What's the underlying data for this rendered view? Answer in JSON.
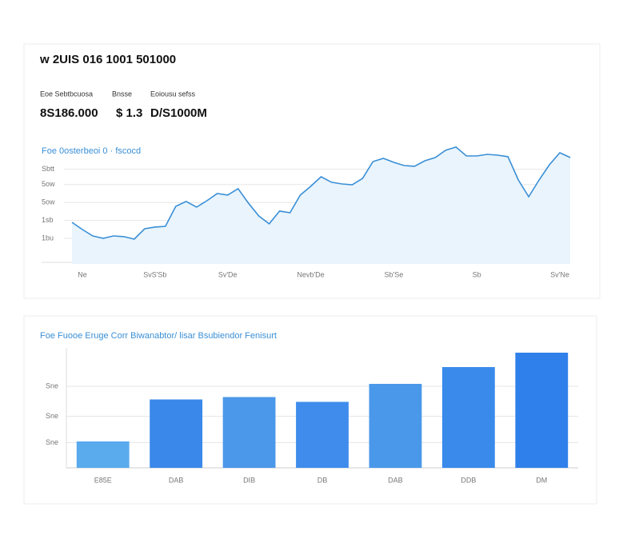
{
  "header": {
    "title": "w 2UIS 016 1001 501000",
    "stats": [
      {
        "label": "Eoe Sebtbcuosa",
        "value": "8S186.000"
      },
      {
        "label": "Bnsse",
        "value": "$ 1.3"
      },
      {
        "label": "Eoiousu sefss",
        "value": "D/S1000M"
      }
    ]
  },
  "chart_data": [
    {
      "type": "line",
      "title": "Foe 0osterbeoi 0 · fscocd",
      "color": "#3a8fd6",
      "area_color": "#e9f4fc",
      "grid": true,
      "values": [
        32.5,
        26.9,
        21.9,
        20,
        21.9,
        21.3,
        19.4,
        27.5,
        28.8,
        29.4,
        45,
        48.8,
        44.4,
        49.4,
        55,
        53.8,
        58.8,
        47.5,
        37.5,
        31.3,
        41.3,
        40,
        53.8,
        60.6,
        68.1,
        63.8,
        62.5,
        61.9,
        66.9,
        80,
        82.5,
        79.4,
        76.9,
        76.3,
        80.6,
        83.1,
        88.8,
        91.3,
        84.4,
        84.4,
        85.6,
        85,
        83.8,
        65.6,
        52.5,
        65.6,
        77.5,
        86.9,
        83.1
      ],
      "ylim": [
        0,
        100
      ],
      "yticks": [
        {
          "value": 20,
          "label": "1bu"
        },
        {
          "value": 34,
          "label": "1sb"
        },
        {
          "value": 48,
          "label": "5ow"
        },
        {
          "value": 62,
          "label": "5ow"
        },
        {
          "value": 74,
          "label": "Sbtt"
        }
      ],
      "xlim": [
        0,
        48
      ],
      "xticks": [
        {
          "value": 1,
          "label": "Ne"
        },
        {
          "value": 8,
          "label": "SvS'Sb"
        },
        {
          "value": 15,
          "label": "Sv'De"
        },
        {
          "value": 23,
          "label": "Nevb'De"
        },
        {
          "value": 31,
          "label": "Sb'Se"
        },
        {
          "value": 39,
          "label": "Sb"
        },
        {
          "value": 47,
          "label": "Sv'Ne"
        }
      ]
    },
    {
      "type": "bar",
      "title": "Foe Fuooe Eruge Corr Biwanabtor/ lisar Bsubiendor Fenisurt",
      "grid": true,
      "categories": [
        "E85E",
        "DAB",
        "DIB",
        "DB",
        "DAB",
        "DDB",
        "DM"
      ],
      "values": [
        22,
        57,
        59,
        55,
        70,
        84,
        96
      ],
      "colors": [
        "#5aaaee",
        "#3a88ea",
        "#4b97ea",
        "#3f8cec",
        "#4a98ea",
        "#3a8aec",
        "#2f80ea"
      ],
      "ylim": [
        0,
        100
      ],
      "yticks": [
        {
          "value": 21,
          "label": "Sne"
        },
        {
          "value": 43,
          "label": "Sne"
        },
        {
          "value": 68,
          "label": "Sne"
        }
      ]
    }
  ]
}
